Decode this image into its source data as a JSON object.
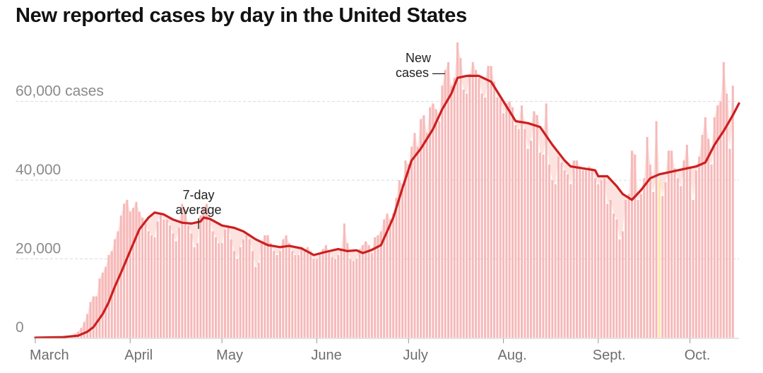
{
  "title": "New reported cases by day in the United States",
  "colors": {
    "bar": "#f6b9b9",
    "bar_fill_below_avg": "#f4aaaa",
    "area_above_avg": "#fde3e0",
    "avg_line": "#cc1f1f",
    "gridline": "#d9d9d9",
    "highlight_bar": "#fce6a8"
  },
  "annotations": {
    "avg_label_line1": "7-day",
    "avg_label_line2": "average",
    "new_label_line1": "New",
    "new_label_line2": "cases —"
  },
  "chart_data": {
    "type": "bar",
    "title": "New reported cases by day in the United States",
    "xlabel": "",
    "ylabel": "",
    "x_range": [
      "2020-03-01",
      "2020-10-17"
    ],
    "ylim": [
      0,
      75000
    ],
    "grid": true,
    "y_ticks": [
      {
        "value": 0,
        "label": "0"
      },
      {
        "value": 20000,
        "label": "20,000"
      },
      {
        "value": 40000,
        "label": "40,000"
      },
      {
        "value": 60000,
        "label": "60,000 cases"
      }
    ],
    "x_ticks": [
      {
        "date": "2020-03-01",
        "label": "March"
      },
      {
        "date": "2020-04-01",
        "label": "April"
      },
      {
        "date": "2020-05-01",
        "label": "May"
      },
      {
        "date": "2020-06-01",
        "label": "June"
      },
      {
        "date": "2020-07-01",
        "label": "July"
      },
      {
        "date": "2020-08-01",
        "label": "Aug."
      },
      {
        "date": "2020-09-01",
        "label": "Sept."
      },
      {
        "date": "2020-10-01",
        "label": "Oct."
      }
    ],
    "highlight_date": "2020-09-21",
    "series": [
      {
        "name": "New cases",
        "kind": "bar",
        "dates_from": "2020-03-01",
        "values": [
          0,
          0,
          0,
          0,
          0,
          0,
          0,
          0,
          100,
          200,
          300,
          500,
          700,
          1000,
          1500,
          2500,
          4000,
          6000,
          9000,
          10500,
          10500,
          15000,
          16500,
          18000,
          21000,
          22000,
          25000,
          27000,
          31000,
          34000,
          35000,
          32000,
          33000,
          34500,
          32000,
          30500,
          29000,
          27000,
          26000,
          25500,
          29500,
          31500,
          30000,
          30000,
          28500,
          26500,
          24500,
          28000,
          34000,
          32500,
          28500,
          26500,
          23000,
          24000,
          31000,
          33000,
          34000,
          30000,
          27000,
          25500,
          24000,
          24000,
          27500,
          28500,
          25000,
          22000,
          20000,
          23000,
          25000,
          26000,
          25000,
          22000,
          18000,
          19000,
          24000,
          26000,
          26000,
          24000,
          22000,
          21000,
          22000,
          25000,
          26000,
          24000,
          22000,
          21000,
          21000,
          23000,
          22000,
          23000,
          22000,
          20000,
          20000,
          21500,
          22500,
          23500,
          22000,
          20500,
          20000,
          21000,
          22500,
          29000,
          24000,
          20000,
          19500,
          20000,
          22500,
          23500,
          24500,
          23500,
          21500,
          25500,
          26000,
          27000,
          30000,
          31500,
          30000,
          31500,
          35500,
          40000,
          39000,
          45000,
          44000,
          48500,
          52000,
          48500,
          55500,
          56500,
          52000,
          58500,
          59500,
          58000,
          55000,
          64000,
          68000,
          70000,
          64000,
          66000,
          75000,
          71000,
          63000,
          62000,
          67000,
          70000,
          68000,
          66000,
          62000,
          61000,
          69000,
          69000,
          65000,
          61000,
          60500,
          57000,
          59500,
          60000,
          58500,
          54000,
          53000,
          59000,
          53000,
          48000,
          50000,
          57500,
          56500,
          47000,
          46500,
          59500,
          44000,
          40000,
          39000,
          46000,
          44500,
          42500,
          41500,
          39000,
          45000,
          45000,
          43500,
          42500,
          42500,
          43500,
          43000,
          40500,
          39000,
          40000,
          40500,
          34000,
          35000,
          31500,
          30000,
          25000,
          27000,
          35000,
          36500,
          47500,
          46500,
          35000,
          36500,
          40500,
          51000,
          44000,
          37000,
          55000,
          40000,
          36000,
          39500,
          47500,
          47500,
          43000,
          40500,
          38500,
          45000,
          49000,
          43000,
          35000,
          42500,
          46000,
          51500,
          56000,
          50500,
          44000,
          56000,
          59000,
          60000,
          70000,
          62000,
          48000,
          64000
        ]
      },
      {
        "name": "7-day average",
        "kind": "line",
        "points": [
          [
            "2020-03-01",
            0
          ],
          [
            "2020-03-10",
            150
          ],
          [
            "2020-03-15",
            500
          ],
          [
            "2020-03-18",
            1500
          ],
          [
            "2020-03-20",
            2700
          ],
          [
            "2020-03-23",
            6000
          ],
          [
            "2020-03-25",
            9000
          ],
          [
            "2020-03-27",
            13000
          ],
          [
            "2020-03-29",
            16500
          ],
          [
            "2020-04-01",
            22000
          ],
          [
            "2020-04-04",
            27500
          ],
          [
            "2020-04-07",
            30500
          ],
          [
            "2020-04-09",
            31800
          ],
          [
            "2020-04-12",
            31300
          ],
          [
            "2020-04-15",
            30000
          ],
          [
            "2020-04-18",
            29200
          ],
          [
            "2020-04-21",
            29000
          ],
          [
            "2020-04-24",
            29500
          ],
          [
            "2020-04-25",
            30500
          ],
          [
            "2020-04-27",
            30200
          ],
          [
            "2020-05-01",
            28500
          ],
          [
            "2020-05-05",
            27900
          ],
          [
            "2020-05-08",
            27000
          ],
          [
            "2020-05-12",
            25000
          ],
          [
            "2020-05-16",
            23500
          ],
          [
            "2020-05-20",
            23000
          ],
          [
            "2020-05-23",
            23300
          ],
          [
            "2020-05-27",
            22700
          ],
          [
            "2020-05-31",
            21000
          ],
          [
            "2020-06-04",
            21800
          ],
          [
            "2020-06-08",
            22500
          ],
          [
            "2020-06-11",
            22000
          ],
          [
            "2020-06-14",
            22200
          ],
          [
            "2020-06-16",
            21500
          ],
          [
            "2020-06-19",
            22300
          ],
          [
            "2020-06-22",
            23500
          ],
          [
            "2020-06-26",
            30500
          ],
          [
            "2020-06-29",
            38000
          ],
          [
            "2020-07-02",
            45000
          ],
          [
            "2020-07-05",
            48000
          ],
          [
            "2020-07-09",
            53000
          ],
          [
            "2020-07-12",
            58000
          ],
          [
            "2020-07-15",
            62000
          ],
          [
            "2020-07-17",
            66000
          ],
          [
            "2020-07-20",
            66500
          ],
          [
            "2020-07-24",
            66500
          ],
          [
            "2020-07-28",
            65000
          ],
          [
            "2020-08-01",
            60000
          ],
          [
            "2020-08-05",
            55000
          ],
          [
            "2020-08-09",
            54500
          ],
          [
            "2020-08-13",
            53500
          ],
          [
            "2020-08-17",
            49000
          ],
          [
            "2020-08-21",
            45000
          ],
          [
            "2020-08-23",
            43500
          ],
          [
            "2020-08-27",
            43000
          ],
          [
            "2020-08-31",
            42500
          ],
          [
            "2020-09-01",
            41000
          ],
          [
            "2020-09-04",
            41000
          ],
          [
            "2020-09-07",
            38500
          ],
          [
            "2020-09-09",
            36500
          ],
          [
            "2020-09-12",
            35000
          ],
          [
            "2020-09-15",
            37500
          ],
          [
            "2020-09-18",
            40500
          ],
          [
            "2020-09-21",
            41500
          ],
          [
            "2020-09-24",
            42000
          ],
          [
            "2020-09-27",
            42500
          ],
          [
            "2020-09-30",
            43000
          ],
          [
            "2020-10-03",
            43500
          ],
          [
            "2020-10-06",
            44500
          ],
          [
            "2020-10-09",
            49000
          ],
          [
            "2020-10-12",
            52500
          ],
          [
            "2020-10-15",
            56500
          ],
          [
            "2020-10-17",
            59500
          ]
        ]
      }
    ]
  }
}
